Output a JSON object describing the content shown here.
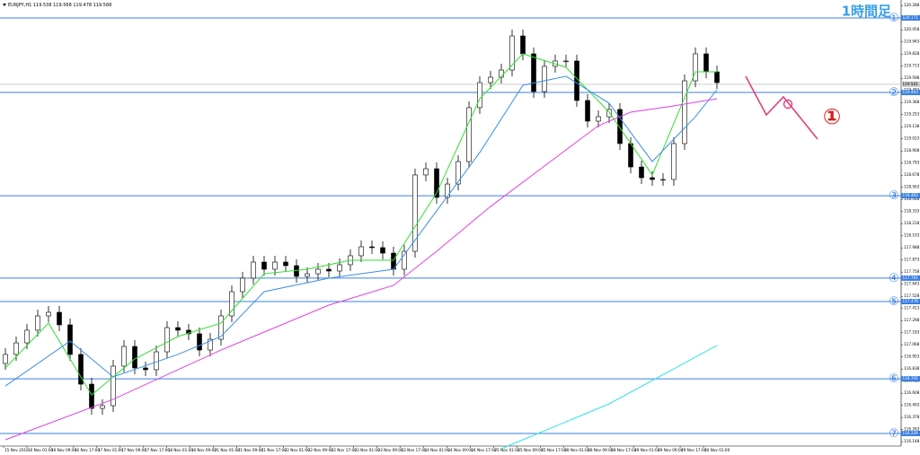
{
  "chart_data": {
    "type": "candlestick",
    "title": "EURJPY,H1 119.538 119.568 119.478 119.568",
    "timeframe_label": "1時間足",
    "xtick_labels": [
      "15 Nov 2016",
      "16 Nov 01:00",
      "16 Nov 09:00",
      "16 Nov 17:00",
      "17 Nov 01:00",
      "17 Nov 09:00",
      "17 Nov 17:00",
      "18 Nov 01:00",
      "18 Nov 09:00",
      "21 Nov 01:00",
      "21 Nov 09:00",
      "21 Nov 17:00",
      "22 Nov 01:00",
      "22 Nov 09:00",
      "22 Nov 17:00",
      "23 Nov 01:00",
      "23 Nov 09:00",
      "23 Nov 17:00",
      "24 Nov 01:00",
      "24 Nov 09:00",
      "24 Nov 17:00",
      "25 Nov 01:00",
      "25 Nov 09:00",
      "25 Nov 17:00",
      "28 Nov 01:00",
      "28 Nov 09:00",
      "28 Nov 17:00",
      "29 Nov 01:00",
      "29 Nov 09:00",
      "29 Nov 17:00",
      "30 Nov 01:00"
    ],
    "open": [
      116.89,
      116.976,
      117.086,
      117.206,
      117.342,
      117.376,
      117.257,
      116.976,
      116.694,
      116.464,
      116.49,
      116.865,
      117.052,
      116.848,
      116.831,
      117.001,
      117.231,
      117.206,
      117.172,
      117.018,
      117.12,
      117.342,
      117.572,
      117.7,
      117.853,
      117.785,
      117.853,
      117.819,
      117.717,
      117.742,
      117.785,
      117.768,
      117.828,
      117.913,
      117.998,
      117.99,
      117.938,
      117.785,
      117.955,
      118.68,
      118.739,
      118.467,
      118.594,
      118.807,
      119.319,
      119.557,
      119.608,
      119.676,
      120.0,
      119.83,
      119.472,
      119.711,
      119.762,
      119.762,
      119.387,
      119.191,
      119.233,
      119.302,
      118.978,
      118.756,
      118.654,
      118.637,
      118.637,
      118.978,
      119.574,
      119.83,
      119.659
    ],
    "high": [
      117.036,
      117.146,
      117.266,
      117.402,
      117.436,
      117.436,
      117.317,
      117.036,
      116.754,
      116.55,
      116.925,
      117.112,
      117.112,
      116.908,
      117.061,
      117.291,
      117.291,
      117.266,
      117.232,
      117.18,
      117.402,
      117.632,
      117.76,
      117.913,
      117.913,
      117.913,
      117.913,
      117.879,
      117.802,
      117.845,
      117.845,
      117.888,
      117.973,
      118.058,
      118.058,
      118.05,
      117.998,
      118.015,
      118.74,
      118.799,
      118.799,
      118.654,
      118.867,
      119.379,
      119.617,
      119.668,
      119.736,
      120.06,
      120.06,
      119.89,
      119.771,
      119.822,
      119.822,
      119.822,
      119.447,
      119.293,
      119.362,
      119.362,
      119.038,
      118.816,
      118.714,
      118.697,
      119.038,
      119.634,
      119.89,
      119.89,
      119.719
    ],
    "low": [
      116.83,
      116.916,
      117.026,
      117.146,
      117.282,
      117.197,
      116.916,
      116.634,
      116.404,
      116.404,
      116.43,
      116.805,
      116.788,
      116.771,
      116.771,
      116.941,
      117.146,
      117.112,
      116.958,
      116.958,
      117.06,
      117.282,
      117.512,
      117.64,
      117.725,
      117.725,
      117.759,
      117.657,
      117.657,
      117.682,
      117.708,
      117.708,
      117.768,
      117.853,
      117.93,
      117.878,
      117.725,
      117.725,
      117.895,
      118.62,
      118.407,
      118.407,
      118.534,
      118.747,
      119.259,
      119.497,
      119.548,
      119.616,
      119.77,
      119.412,
      119.412,
      119.651,
      119.702,
      119.327,
      119.131,
      119.131,
      119.173,
      118.918,
      118.696,
      118.594,
      118.577,
      118.577,
      118.577,
      118.918,
      119.514,
      119.599,
      119.497
    ],
    "close": [
      116.976,
      117.086,
      117.206,
      117.342,
      117.376,
      117.257,
      116.976,
      116.694,
      116.464,
      116.49,
      116.865,
      117.052,
      116.848,
      116.831,
      117.001,
      117.231,
      117.206,
      117.172,
      117.018,
      117.12,
      117.342,
      117.572,
      117.7,
      117.853,
      117.785,
      117.853,
      117.819,
      117.717,
      117.742,
      117.785,
      117.768,
      117.828,
      117.913,
      117.998,
      117.99,
      117.938,
      117.785,
      117.955,
      118.68,
      118.739,
      118.467,
      118.594,
      118.807,
      119.319,
      119.557,
      119.608,
      119.676,
      120.0,
      119.83,
      119.472,
      119.711,
      119.762,
      119.762,
      119.387,
      119.191,
      119.233,
      119.302,
      118.978,
      118.756,
      118.654,
      118.637,
      118.637,
      118.978,
      119.574,
      119.83,
      119.659,
      119.557
    ],
    "moving_averages": [
      {
        "color": "#33dd33",
        "x": [
          0,
          4,
          8,
          12,
          16,
          20,
          24,
          28,
          32,
          36,
          40,
          44,
          48,
          52,
          56,
          60,
          64,
          66
        ],
        "values": [
          116.848,
          117.274,
          116.592,
          116.933,
          117.146,
          117.274,
          117.742,
          117.785,
          117.87,
          117.87,
          118.509,
          119.404,
          119.83,
          119.702,
          119.276,
          118.68,
          119.659,
          119.659
        ]
      },
      {
        "color": "#3a8ee6",
        "x": [
          0,
          6,
          10,
          16,
          20,
          24,
          30,
          36,
          40,
          44,
          48,
          52,
          56,
          60,
          64,
          66
        ],
        "values": [
          116.677,
          117.103,
          116.763,
          116.976,
          117.146,
          117.572,
          117.7,
          117.785,
          118.339,
          118.893,
          119.532,
          119.617,
          119.361,
          118.807,
          119.233,
          119.489
        ]
      },
      {
        "color": "#e040e0",
        "x": [
          0,
          10,
          20,
          25,
          30,
          36,
          40,
          45,
          50,
          55,
          58,
          62,
          66
        ],
        "values": [
          116.166,
          116.55,
          117.018,
          117.231,
          117.444,
          117.632,
          117.955,
          118.381,
          118.765,
          119.148,
          119.276,
          119.336,
          119.404
        ]
      },
      {
        "color": "#33e0e8",
        "x": [
          46,
          56,
          66
        ],
        "values": [
          116.081,
          116.507,
          117.061
        ]
      }
    ],
    "levels": [
      {
        "label": "①",
        "value": 120.171
      },
      {
        "label": "②",
        "value": 119.463
      },
      {
        "label": "③",
        "value": 118.483
      },
      {
        "label": "④",
        "value": 117.701
      },
      {
        "label": "⑤",
        "value": 117.478
      },
      {
        "label": "⑥",
        "value": 116.745
      },
      {
        "label": "⑦",
        "value": 116.226
      }
    ],
    "current_price": 119.541,
    "annotation": "①",
    "ylim": [
      116.081,
      120.341
    ],
    "yticks": [
      116.148,
      116.263,
      116.378,
      116.493,
      116.608,
      116.723,
      116.838,
      116.953,
      117.068,
      117.183,
      117.298,
      117.413,
      117.528,
      117.643,
      117.758,
      117.873,
      117.988,
      118.103,
      118.218,
      118.333,
      118.448,
      118.563,
      118.678,
      118.793,
      118.908,
      119.023,
      119.138,
      119.253,
      119.368,
      119.483,
      119.598,
      119.713,
      119.828,
      119.943,
      120.058,
      120.173,
      120.288
    ]
  }
}
